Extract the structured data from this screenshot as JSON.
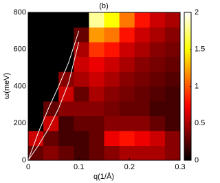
{
  "chart_data": {
    "type": "heatmap",
    "title": "(b)",
    "xlabel": "q(1/Å)",
    "ylabel": "ω(meV)",
    "colormap": "hot",
    "x": [
      0,
      0.03,
      0.06,
      0.09,
      0.12,
      0.15,
      0.18,
      0.21,
      0.24,
      0.27,
      0.3
    ],
    "y": [
      0,
      80,
      160,
      240,
      320,
      400,
      480,
      560,
      640,
      720,
      800
    ],
    "z": [
      [
        0.3,
        0.4,
        0.3,
        0.2,
        0.3,
        0.4,
        0.5,
        0.5,
        0.5,
        0.4
      ],
      [
        0.6,
        0.3,
        0.2,
        0.2,
        0.3,
        0.7,
        0.8,
        0.7,
        0.6,
        0.4
      ],
      [
        0,
        0.6,
        0.2,
        0.3,
        0.3,
        0.4,
        0.4,
        0.4,
        0.3,
        0.2
      ],
      [
        0,
        0.3,
        0.4,
        0.4,
        0.4,
        0.35,
        0.3,
        0.3,
        0.2,
        0.2
      ],
      [
        0,
        0,
        0.6,
        0.3,
        0.5,
        0.4,
        0.35,
        0.3,
        0.25,
        0.2
      ],
      [
        0,
        0,
        0.4,
        0.5,
        0.6,
        0.5,
        0.4,
        0.35,
        0.3,
        0.25
      ],
      [
        0,
        0,
        0,
        0.6,
        0.7,
        0.6,
        0.5,
        0.4,
        0.35,
        0.3
      ],
      [
        0,
        0,
        0,
        0.5,
        0.9,
        0.8,
        0.6,
        0.5,
        0.4,
        0.35
      ],
      [
        0,
        0,
        0,
        0.3,
        1.2,
        1.1,
        0.8,
        0.6,
        0.5,
        0.4
      ],
      [
        0,
        0,
        0,
        0,
        1.8,
        1.5,
        1.1,
        0.8,
        0.6,
        0.5
      ]
    ],
    "lines": [
      {
        "color": "#ffffff",
        "x": [
          0,
          0.02,
          0.04,
          0.06,
          0.08,
          0.1
        ],
        "y": [
          0,
          150,
          280,
          400,
          530,
          700
        ]
      },
      {
        "color": "#ffffff",
        "x": [
          0,
          0.02,
          0.04,
          0.06,
          0.08,
          0.1
        ],
        "y": [
          0,
          80,
          170,
          280,
          420,
          640
        ]
      }
    ],
    "xlim": [
      0,
      0.3
    ],
    "xticks": [
      0,
      0.1,
      0.2,
      0.3
    ],
    "ylim": [
      0,
      800
    ],
    "yticks": [
      0,
      200,
      400,
      600,
      800
    ],
    "zlim": [
      0,
      2
    ],
    "zticks": [
      0,
      0.5,
      1,
      1.5,
      2
    ]
  }
}
